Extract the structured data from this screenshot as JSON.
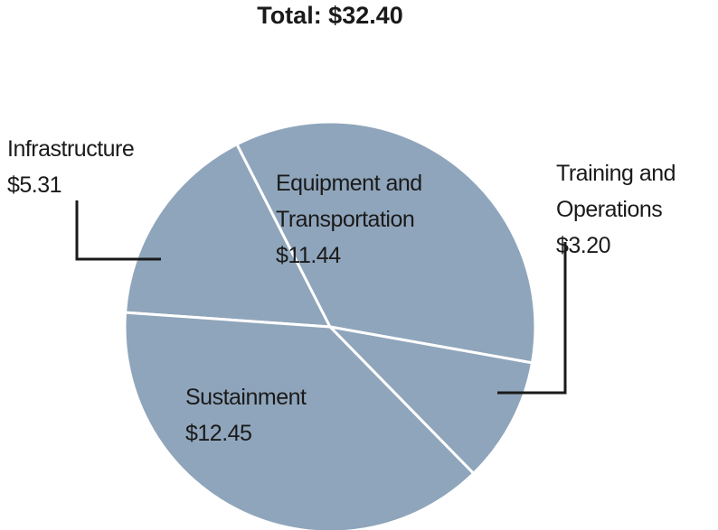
{
  "chart_data": {
    "type": "pie",
    "title": "Total: $32.40",
    "categories": [
      "Infrastructure",
      "Equipment and Transportation",
      "Training and Operations",
      "Sustainment"
    ],
    "values": [
      5.31,
      11.44,
      3.2,
      12.45
    ],
    "value_labels": [
      "$5.31",
      "$11.44",
      "$3.20",
      "$12.45"
    ],
    "color": "#8fa5bb"
  }
}
